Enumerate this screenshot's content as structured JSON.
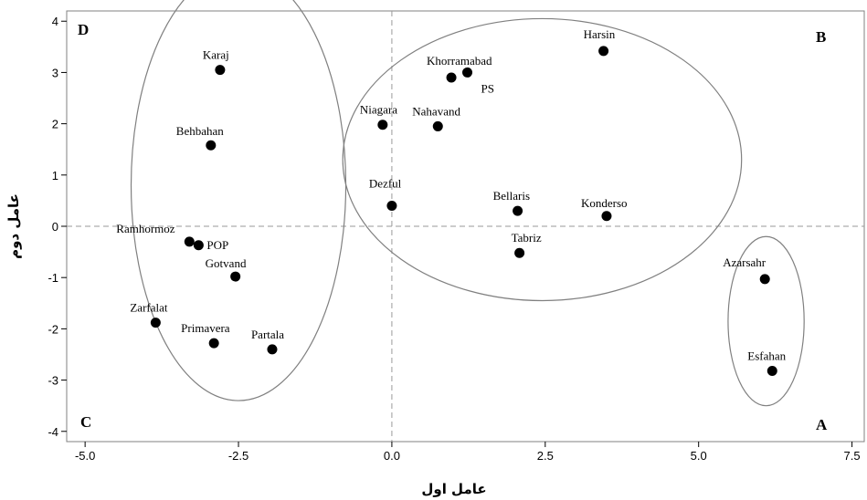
{
  "chart_data": {
    "type": "scatter",
    "xlabel": "عامل اول",
    "ylabel": "عامل دوم",
    "xlim": [
      -5.3,
      7.7
    ],
    "ylim": [
      -4.2,
      4.2
    ],
    "x_ticks": [
      -5.0,
      -2.5,
      0.0,
      2.5,
      5.0,
      7.5
    ],
    "x_tick_labels": [
      "-5.0",
      "-2.5",
      "0.0",
      "2.5",
      "5.0",
      "7.5"
    ],
    "y_ticks": [
      -4,
      -3,
      -2,
      -1,
      0,
      1,
      2,
      3,
      4
    ],
    "y_tick_labels": [
      "-4",
      "-3",
      "-2",
      "-1",
      "0",
      "1",
      "2",
      "3",
      "4"
    ],
    "reference_lines": {
      "x": 0,
      "y": 0,
      "style": "dashed"
    },
    "grid": false,
    "points": [
      {
        "label": "Karaj",
        "x": -2.8,
        "y": 3.05
      },
      {
        "label": "Behbahan",
        "x": -2.95,
        "y": 1.58
      },
      {
        "label": "Ramhormoz",
        "x": -3.3,
        "y": -0.3
      },
      {
        "label": "POP",
        "x": -3.15,
        "y": -0.37
      },
      {
        "label": "Gotvand",
        "x": -2.55,
        "y": -0.98
      },
      {
        "label": "Zarfalat",
        "x": -3.85,
        "y": -1.88
      },
      {
        "label": "Primavera",
        "x": -2.9,
        "y": -2.28
      },
      {
        "label": "Partala",
        "x": -1.95,
        "y": -2.4
      },
      {
        "label": "Niagara",
        "x": -0.15,
        "y": 1.98
      },
      {
        "label": "Dezful",
        "x": 0.0,
        "y": 0.4
      },
      {
        "label": "Nahavand",
        "x": 0.75,
        "y": 1.95
      },
      {
        "label": "Khorramabad",
        "x": 0.97,
        "y": 2.9
      },
      {
        "label": "PS",
        "x": 1.23,
        "y": 3.0
      },
      {
        "label": "Bellaris",
        "x": 2.05,
        "y": 0.3
      },
      {
        "label": "Tabriz",
        "x": 2.08,
        "y": -0.52
      },
      {
        "label": "Harsin",
        "x": 3.45,
        "y": 3.42
      },
      {
        "label": "Konderso",
        "x": 3.5,
        "y": 0.2
      },
      {
        "label": "Azarsahr",
        "x": 6.08,
        "y": -1.03
      },
      {
        "label": "Esfahan",
        "x": 6.2,
        "y": -2.82
      }
    ],
    "clusters": [
      {
        "name": "left-cluster",
        "cx": -2.5,
        "cy": 0.8,
        "rx": 1.75,
        "ry": 4.2
      },
      {
        "name": "top-cluster",
        "cx": 2.45,
        "cy": 1.3,
        "rx": 3.25,
        "ry": 2.75
      },
      {
        "name": "right-cluster",
        "cx": 6.1,
        "cy": -1.85,
        "rx": 0.62,
        "ry": 1.65
      }
    ],
    "quadrant_labels": {
      "D": "D",
      "B": "B",
      "C": "C",
      "A": "A"
    }
  }
}
